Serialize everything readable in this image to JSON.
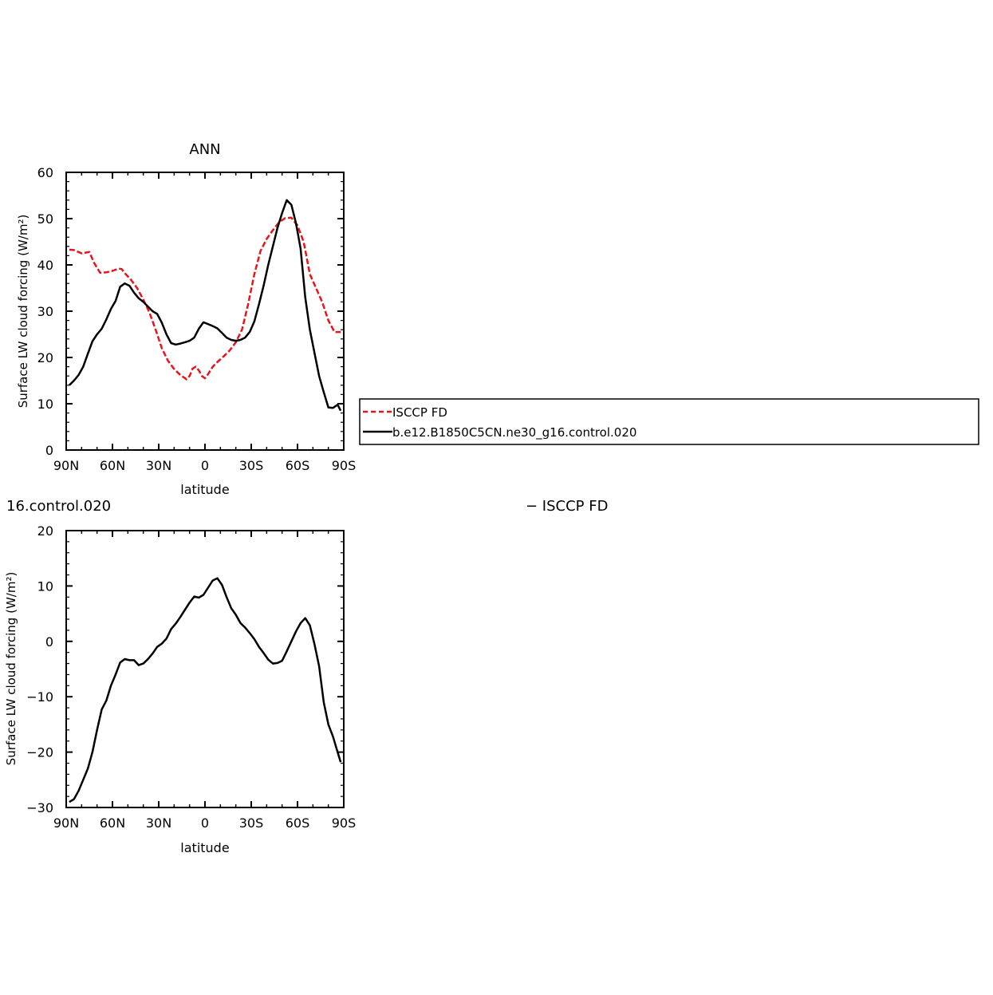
{
  "chart_data": [
    {
      "type": "line",
      "title": "ANN",
      "xlabel": "latitude",
      "ylabel": "Surface LW cloud forcing (W/m²)",
      "xlim": [
        90,
        -90
      ],
      "ylim": [
        0,
        60
      ],
      "x_ticks": [
        90,
        60,
        30,
        0,
        -30,
        -60,
        -90
      ],
      "x_tick_labels": [
        "90N",
        "60N",
        "30N",
        "0",
        "30S",
        "60S",
        "90S"
      ],
      "y_ticks": [
        0,
        10,
        20,
        30,
        40,
        50,
        60
      ],
      "y_tick_labels": [
        "0",
        "10",
        "20",
        "30",
        "40",
        "50",
        "60"
      ],
      "legend": {
        "placement": "right",
        "entries": [
          "ISCCP FD",
          "b.e12.B1850C5CN.ne30_g16.control.020"
        ]
      },
      "series": [
        {
          "name": "ISCCP FD",
          "color": "#e8141c",
          "dash": "dashed",
          "x": [
            88,
            85,
            80,
            75,
            72,
            68,
            64,
            60,
            56,
            54,
            52,
            48,
            44,
            40,
            36,
            32,
            28,
            24,
            20,
            16,
            12,
            10,
            8,
            6,
            4,
            2,
            0,
            -2,
            -5,
            -8,
            -12,
            -16,
            -20,
            -24,
            -28,
            -32,
            -36,
            -40,
            -44,
            -48,
            -52,
            -56,
            -60,
            -64,
            -68,
            -72,
            -76,
            -80,
            -84,
            -88
          ],
          "y": [
            43.3,
            43.2,
            42.5,
            42.8,
            40.5,
            38.3,
            38.4,
            38.7,
            39.2,
            39.1,
            38.2,
            36.8,
            35.0,
            32.5,
            29.7,
            26.0,
            22.0,
            19.3,
            17.5,
            16.2,
            15.3,
            16.0,
            17.6,
            18.0,
            17.2,
            16.0,
            15.5,
            16.4,
            18.0,
            19.0,
            20.2,
            21.5,
            23.3,
            26.0,
            31.5,
            38.0,
            43.0,
            45.6,
            47.5,
            49.2,
            50.1,
            50.2,
            48.5,
            45.0,
            38.0,
            35.0,
            32.0,
            28.0,
            25.5,
            25.5
          ]
        },
        {
          "name": "b.e12.B1850C5CN.ne30_g16.control.020",
          "color": "#000000",
          "dash": "solid",
          "x": [
            88,
            85,
            82,
            79,
            76,
            73,
            70,
            67,
            64,
            61,
            58,
            55,
            52,
            49,
            46,
            43,
            40,
            37,
            34,
            31,
            28,
            25,
            22,
            19,
            16,
            13,
            10,
            7,
            4,
            1,
            -2,
            -5,
            -8,
            -11,
            -14,
            -17,
            -20,
            -23,
            -26,
            -29,
            -32,
            -35,
            -38,
            -41,
            -44,
            -47,
            -50,
            -53,
            -56,
            -59,
            -62,
            -65,
            -68,
            -71,
            -74,
            -77,
            -80,
            -83,
            -86,
            -88
          ],
          "y": [
            14.0,
            15.0,
            16.2,
            18.0,
            20.8,
            23.5,
            25.0,
            26.2,
            28.2,
            30.5,
            32.2,
            35.3,
            36.0,
            35.5,
            34.0,
            32.8,
            32.0,
            31.0,
            30.0,
            29.4,
            27.5,
            25.0,
            23.1,
            22.8,
            23.0,
            23.3,
            23.6,
            24.3,
            26.2,
            27.6,
            27.2,
            26.8,
            26.3,
            25.3,
            24.3,
            23.8,
            23.6,
            23.8,
            24.3,
            25.5,
            27.8,
            31.5,
            35.5,
            40.0,
            44.0,
            48.0,
            51.2,
            54.0,
            53.0,
            49.0,
            43.5,
            33.0,
            26.0,
            21.0,
            16.0,
            12.5,
            9.2,
            9.1,
            9.8,
            8.5
          ]
        }
      ]
    },
    {
      "type": "line",
      "title": "16.control.020",
      "subtitle": "− ISCCP FD",
      "xlabel": "latitude",
      "ylabel": "Surface LW cloud forcing (W/m²)",
      "xlim": [
        90,
        -90
      ],
      "ylim": [
        -30,
        20
      ],
      "x_ticks": [
        90,
        60,
        30,
        0,
        -30,
        -60,
        -90
      ],
      "x_tick_labels": [
        "90N",
        "60N",
        "30N",
        "0",
        "30S",
        "60S",
        "90S"
      ],
      "y_ticks": [
        -30,
        -20,
        -10,
        0,
        10,
        20
      ],
      "y_tick_labels": [
        "−30",
        "−20",
        "−10",
        "0",
        "10",
        "20"
      ],
      "series": [
        {
          "color": "#000000",
          "dash": "solid",
          "x": [
            88,
            85,
            82,
            79,
            76,
            73,
            70,
            67,
            64,
            61,
            58,
            55,
            52,
            49,
            46,
            43,
            40,
            37,
            34,
            31,
            28,
            25,
            22,
            19,
            16,
            13,
            10,
            7,
            4,
            1,
            -2,
            -5,
            -8,
            -11,
            -14,
            -17,
            -20,
            -23,
            -26,
            -29,
            -32,
            -35,
            -38,
            -41,
            -44,
            -47,
            -50,
            -53,
            -56,
            -59,
            -62,
            -65,
            -68,
            -71,
            -74,
            -77,
            -80,
            -83,
            -86,
            -88
          ],
          "y": [
            -29.0,
            -28.5,
            -27.0,
            -25.0,
            -23.0,
            -20.0,
            -16.0,
            -12.3,
            -10.7,
            -8.0,
            -6.0,
            -3.8,
            -3.2,
            -3.4,
            -3.4,
            -4.3,
            -4.0,
            -3.2,
            -2.2,
            -1.0,
            -0.4,
            0.5,
            2.2,
            3.2,
            4.4,
            5.7,
            7.0,
            8.1,
            7.9,
            8.4,
            9.7,
            11.0,
            11.4,
            10.2,
            8.0,
            6.0,
            4.8,
            3.3,
            2.5,
            1.5,
            0.4,
            -1.0,
            -2.1,
            -3.3,
            -4.0,
            -3.9,
            -3.5,
            -1.8,
            0.0,
            1.8,
            3.3,
            4.2,
            2.9,
            -0.5,
            -4.5,
            -11.0,
            -15.0,
            -17.2,
            -20.0,
            -21.8
          ]
        }
      ]
    }
  ]
}
